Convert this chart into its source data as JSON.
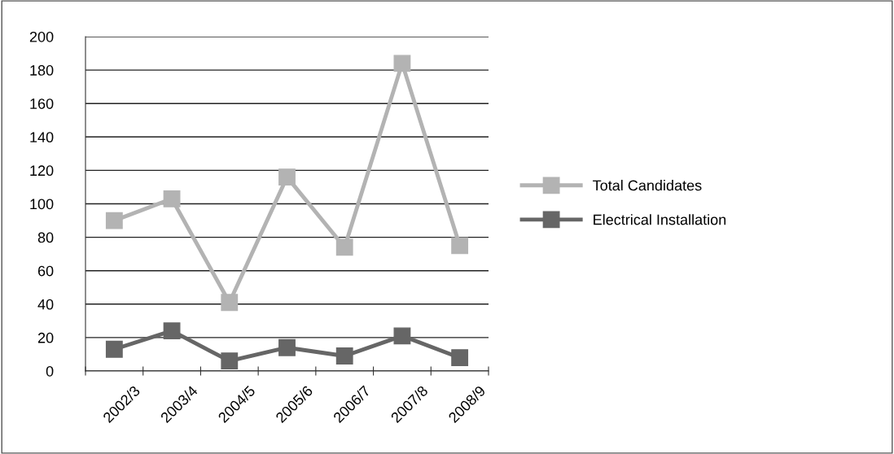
{
  "chart_data": {
    "type": "line",
    "categories": [
      "2002/3",
      "2003/4",
      "2004/5",
      "2005/6",
      "2006/7",
      "2007/8",
      "2008/9"
    ],
    "series": [
      {
        "name": "Total Candidates",
        "color": "#b3b3b3",
        "values": [
          90,
          103,
          41,
          116,
          74,
          184,
          75
        ]
      },
      {
        "name": "Electrical Installation",
        "color": "#666666",
        "values": [
          13,
          24,
          6,
          14,
          9,
          21,
          8
        ]
      }
    ],
    "ylim": [
      0,
      200
    ],
    "yticks": [
      0,
      20,
      40,
      60,
      80,
      100,
      120,
      140,
      160,
      180,
      200
    ],
    "grid": "y",
    "legend": "right",
    "marker": "square",
    "line_style": "solid"
  }
}
